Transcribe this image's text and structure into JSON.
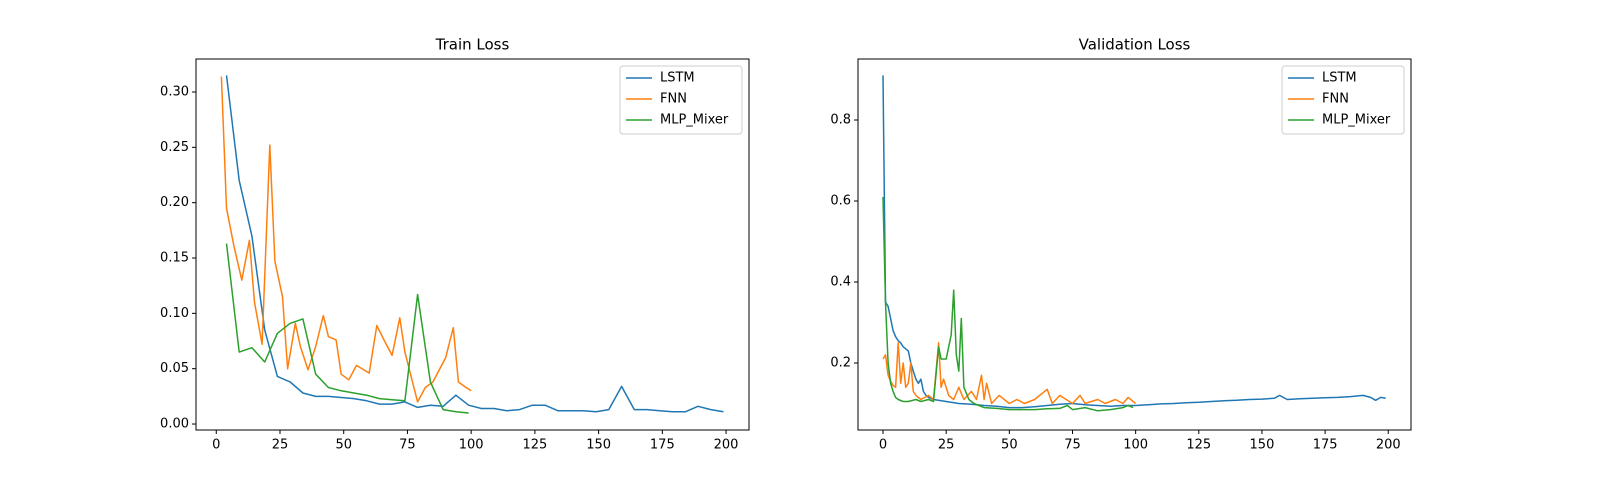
{
  "chart_data": [
    {
      "type": "line",
      "title": "Train Loss",
      "xlim": [
        -7.95,
        209
      ],
      "ylim": [
        -0.0054,
        0.3298
      ],
      "xticks": [
        0,
        25,
        50,
        75,
        100,
        125,
        150,
        175,
        200
      ],
      "yticks": [
        {
          "value": 0,
          "label": "0.00"
        },
        {
          "value": 0.05,
          "label": "0.05"
        },
        {
          "value": 0.1,
          "label": "0.10"
        },
        {
          "value": 0.15,
          "label": "0.15"
        },
        {
          "value": 0.2,
          "label": "0.20"
        },
        {
          "value": 0.25,
          "label": "0.25"
        },
        {
          "value": 0.3,
          "label": "0.30"
        }
      ],
      "legend": "upper right",
      "series": [
        {
          "name": "LSTM",
          "color": "#1f77b4",
          "x": [
            4,
            9,
            14,
            19,
            24,
            29,
            34,
            39,
            44,
            49,
            54,
            59,
            64,
            69,
            74,
            79,
            84,
            89,
            94,
            99,
            104,
            109,
            114,
            119,
            124,
            129,
            134,
            139,
            144,
            149,
            154,
            159,
            164,
            169,
            174,
            179,
            184,
            189,
            194,
            199
          ],
          "values": [
            0.315,
            0.22,
            0.17,
            0.085,
            0.043,
            0.038,
            0.028,
            0.025,
            0.025,
            0.024,
            0.023,
            0.021,
            0.018,
            0.018,
            0.02,
            0.015,
            0.017,
            0.016,
            0.026,
            0.017,
            0.014,
            0.014,
            0.012,
            0.013,
            0.017,
            0.017,
            0.012,
            0.012,
            0.012,
            0.011,
            0.013,
            0.034,
            0.013,
            0.013,
            0.012,
            0.011,
            0.011,
            0.016,
            0.013,
            0.011
          ]
        },
        {
          "name": "FNN",
          "color": "#ff7f0e",
          "x": [
            2,
            4,
            7,
            10,
            13,
            15,
            18,
            21,
            23,
            26,
            28,
            31,
            33,
            36,
            39,
            42,
            44,
            47,
            49,
            52,
            55,
            60,
            63,
            66,
            69,
            72,
            74,
            77,
            79,
            82,
            85,
            90,
            93,
            95,
            98,
            100
          ],
          "values": [
            0.314,
            0.195,
            0.16,
            0.13,
            0.166,
            0.11,
            0.072,
            0.252,
            0.147,
            0.115,
            0.05,
            0.091,
            0.07,
            0.049,
            0.07,
            0.098,
            0.079,
            0.076,
            0.045,
            0.04,
            0.053,
            0.046,
            0.089,
            0.075,
            0.062,
            0.096,
            0.065,
            0.038,
            0.02,
            0.033,
            0.038,
            0.06,
            0.087,
            0.038,
            0.033,
            0.03
          ]
        },
        {
          "name": "MLP_Mixer",
          "color": "#2ca02c",
          "x": [
            4,
            9,
            14,
            19,
            24,
            29,
            34,
            39,
            44,
            49,
            54,
            59,
            64,
            69,
            74,
            79,
            84,
            89,
            94,
            99
          ],
          "values": [
            0.163,
            0.065,
            0.069,
            0.056,
            0.082,
            0.091,
            0.095,
            0.045,
            0.033,
            0.03,
            0.028,
            0.026,
            0.023,
            0.022,
            0.021,
            0.117,
            0.038,
            0.013,
            0.011,
            0.01
          ]
        }
      ]
    },
    {
      "type": "line",
      "title": "Validation Loss",
      "xlim": [
        -9.9,
        209
      ],
      "ylim": [
        0.0346,
        0.9506
      ],
      "xticks": [
        0,
        25,
        50,
        75,
        100,
        125,
        150,
        175,
        200
      ],
      "yticks": [
        0.2,
        0.4,
        0.6,
        0.8
      ],
      "legend": "upper right",
      "series": [
        {
          "name": "LSTM",
          "color": "#1f77b4",
          "x": [
            0,
            1,
            2,
            3,
            4,
            5,
            6,
            7,
            8,
            9,
            10,
            11,
            12,
            13,
            14,
            15,
            16,
            17,
            18,
            20,
            25,
            30,
            35,
            40,
            45,
            50,
            55,
            60,
            65,
            70,
            75,
            80,
            85,
            90,
            95,
            100,
            105,
            110,
            115,
            120,
            125,
            130,
            135,
            140,
            145,
            150,
            155,
            157,
            160,
            165,
            170,
            175,
            180,
            185,
            190,
            193,
            195,
            197,
            199
          ],
          "values": [
            0.91,
            0.35,
            0.34,
            0.31,
            0.28,
            0.265,
            0.255,
            0.25,
            0.24,
            0.235,
            0.23,
            0.2,
            0.18,
            0.16,
            0.15,
            0.16,
            0.13,
            0.12,
            0.115,
            0.11,
            0.105,
            0.1,
            0.098,
            0.095,
            0.093,
            0.09,
            0.09,
            0.092,
            0.095,
            0.098,
            0.1,
            0.097,
            0.095,
            0.093,
            0.095,
            0.095,
            0.097,
            0.099,
            0.1,
            0.102,
            0.103,
            0.105,
            0.107,
            0.108,
            0.11,
            0.111,
            0.113,
            0.12,
            0.11,
            0.112,
            0.113,
            0.114,
            0.115,
            0.117,
            0.12,
            0.115,
            0.108,
            0.115,
            0.113
          ]
        },
        {
          "name": "FNN",
          "color": "#ff7f0e",
          "x": [
            0,
            1,
            2,
            3,
            4,
            5,
            6,
            7,
            8,
            9,
            10,
            11,
            12,
            13,
            15,
            18,
            20,
            22,
            23,
            24,
            26,
            28,
            30,
            32,
            35,
            37,
            39,
            40,
            41,
            43,
            46,
            50,
            53,
            56,
            60,
            65,
            67,
            70,
            75,
            78,
            80,
            85,
            88,
            92,
            95,
            97,
            100
          ],
          "values": [
            0.21,
            0.22,
            0.17,
            0.155,
            0.145,
            0.14,
            0.25,
            0.15,
            0.2,
            0.14,
            0.15,
            0.2,
            0.13,
            0.12,
            0.11,
            0.12,
            0.11,
            0.25,
            0.14,
            0.16,
            0.12,
            0.11,
            0.14,
            0.11,
            0.13,
            0.11,
            0.17,
            0.11,
            0.15,
            0.1,
            0.12,
            0.1,
            0.11,
            0.1,
            0.11,
            0.135,
            0.1,
            0.12,
            0.1,
            0.12,
            0.1,
            0.11,
            0.1,
            0.11,
            0.1,
            0.115,
            0.1
          ]
        },
        {
          "name": "MLP_Mixer",
          "color": "#2ca02c",
          "x": [
            0,
            1,
            2,
            3,
            4,
            5,
            6,
            8,
            10,
            13,
            15,
            18,
            20,
            22,
            23,
            24,
            25,
            27,
            28,
            29,
            30,
            31,
            32,
            34,
            36,
            38,
            40,
            45,
            50,
            55,
            60,
            65,
            70,
            73,
            75,
            80,
            85,
            90,
            95,
            97,
            99
          ],
          "values": [
            0.61,
            0.35,
            0.2,
            0.15,
            0.13,
            0.115,
            0.11,
            0.105,
            0.105,
            0.11,
            0.105,
            0.11,
            0.105,
            0.24,
            0.21,
            0.21,
            0.21,
            0.27,
            0.38,
            0.22,
            0.18,
            0.31,
            0.14,
            0.11,
            0.1,
            0.095,
            0.09,
            0.088,
            0.085,
            0.085,
            0.085,
            0.087,
            0.088,
            0.095,
            0.085,
            0.09,
            0.082,
            0.085,
            0.09,
            0.095,
            0.09
          ]
        }
      ]
    }
  ]
}
